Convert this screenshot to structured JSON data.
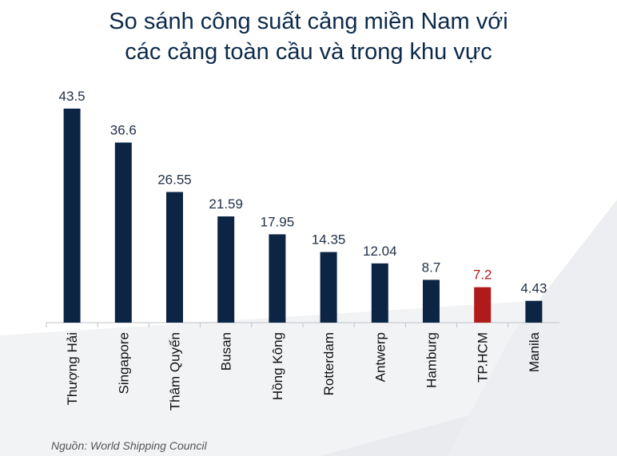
{
  "title": {
    "line1": "So sánh công suất cảng miền Nam với",
    "line2": "các cảng toàn cầu và trong khu vực"
  },
  "source": "Nguồn: World Shipping Council",
  "colors": {
    "bar": "#0c2545",
    "highlight": "#b01a1a",
    "title": "#0c2a4a",
    "label": "#1f2f45",
    "axis": "#bfc3c9"
  },
  "chart_data": {
    "type": "bar",
    "categories": [
      "Thượng Hải",
      "Singapore",
      "Thâm Quyến",
      "Busan",
      "Hồng Kông",
      "Rotterdam",
      "Antwerp",
      "Hamburg",
      "TP.HCM",
      "Manila"
    ],
    "values": [
      43.5,
      36.6,
      26.55,
      21.59,
      17.95,
      14.35,
      12.04,
      8.7,
      7.2,
      4.43
    ],
    "value_labels": [
      "43.5",
      "36.6",
      "26.55",
      "21.59",
      "17.95",
      "14.35",
      "12.04",
      "8.7",
      "7.2",
      "4.43"
    ],
    "highlight": "TP.HCM",
    "title": "So sánh công suất cảng miền Nam với các cảng toàn cầu và trong khu vực",
    "xlabel": "",
    "ylabel": "",
    "ylim": [
      0,
      43.5
    ],
    "grid": false,
    "legend": "none"
  }
}
